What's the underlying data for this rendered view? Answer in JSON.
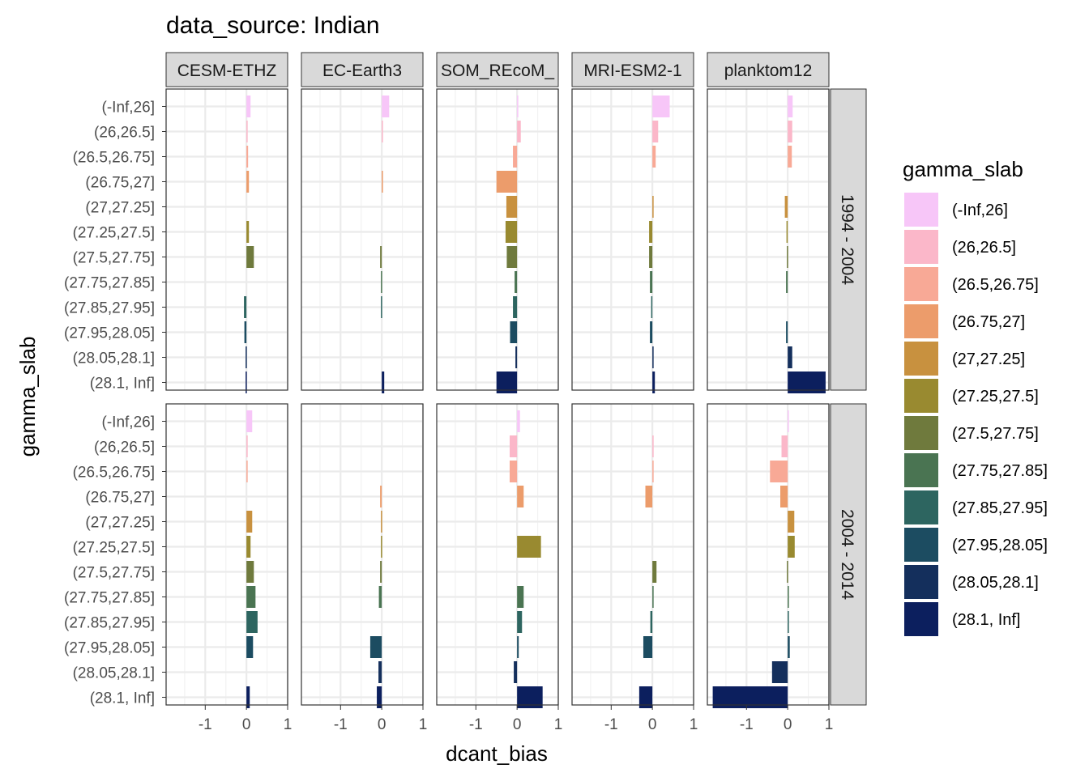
{
  "chart_data": {
    "type": "bar",
    "orientation": "horizontal",
    "facet_layout": "grid",
    "title": "data_source: Indian",
    "xlabel": "dcant_bias",
    "ylabel": "gamma_slab",
    "xlim": [
      -1.95,
      1.0
    ],
    "x_ticks": [
      -1,
      0,
      1
    ],
    "x_tick_labels": [
      "-1",
      "0",
      "1"
    ],
    "grid": true,
    "facet_columns": [
      "CESM-ETHZ",
      "EC-Earth3",
      "FESOM_REcoM_",
      "MRI-ESM2-1",
      "planktom12"
    ],
    "facet_column_labels": [
      "CESM-ETHZ",
      "EC-Earth3",
      "SOM_REcoM_",
      "MRI-ESM2-1",
      "planktom12"
    ],
    "facet_rows": [
      "1994 - 2004",
      "2004 - 2014"
    ],
    "categories": [
      "(-Inf,26]",
      "(26,26.5]",
      "(26.5,26.75]",
      "(26.75,27]",
      "(27,27.25]",
      "(27.25,27.5]",
      "(27.5,27.75]",
      "(27.75,27.85]",
      "(27.85,27.95]",
      "(27.95,28.05]",
      "(28.05,28.1]",
      "(28.1, Inf]"
    ],
    "colors": [
      "#f7c6f8",
      "#fbb7c9",
      "#f8a996",
      "#ec9c6b",
      "#c8913f",
      "#998a30",
      "#6f7a3d",
      "#4a7452",
      "#2d6560",
      "#1c4c61",
      "#142f5c",
      "#0c1f5e"
    ],
    "legend": {
      "title": "gamma_slab",
      "position": "right",
      "labels": [
        "(-Inf,26]",
        "(26,26.5]",
        "(26.5,26.75]",
        "(26.75,27]",
        "(27,27.25]",
        "(27.25,27.5]",
        "(27.5,27.75]",
        "(27.75,27.85]",
        "(27.85,27.95]",
        "(27.95,28.05]",
        "(28.05,28.1]",
        "(28.1, Inf]"
      ]
    },
    "panels": [
      {
        "row": "1994 - 2004",
        "column": "CESM-ETHZ",
        "values": [
          0.1,
          0.02,
          0.04,
          0.06,
          0.0,
          0.06,
          0.18,
          0.0,
          -0.06,
          -0.05,
          -0.02,
          -0.02
        ]
      },
      {
        "row": "1994 - 2004",
        "column": "EC-Earth3",
        "values": [
          0.18,
          0.03,
          0.0,
          0.03,
          0.0,
          0.0,
          -0.04,
          -0.02,
          -0.02,
          0.0,
          0.0,
          0.06
        ]
      },
      {
        "row": "1994 - 2004",
        "column": "FESOM_REcoM_",
        "values": [
          0.01,
          0.09,
          -0.1,
          -0.5,
          -0.26,
          -0.28,
          -0.25,
          -0.06,
          -0.1,
          -0.17,
          -0.04,
          -0.5
        ]
      },
      {
        "row": "1994 - 2004",
        "column": "MRI-ESM2-1",
        "values": [
          0.42,
          0.14,
          0.08,
          0.0,
          0.02,
          -0.08,
          -0.08,
          -0.06,
          -0.03,
          -0.06,
          0.01,
          0.06
        ]
      },
      {
        "row": "1994 - 2004",
        "column": "planktom12",
        "values": [
          0.12,
          0.11,
          0.1,
          0.0,
          -0.07,
          -0.03,
          -0.02,
          -0.04,
          0.0,
          -0.04,
          0.11,
          0.92
        ]
      },
      {
        "row": "2004 - 2014",
        "column": "CESM-ETHZ",
        "values": [
          0.14,
          0.03,
          0.02,
          0.0,
          0.14,
          0.1,
          0.18,
          0.22,
          0.27,
          0.16,
          0.0,
          0.08
        ]
      },
      {
        "row": "2004 - 2014",
        "column": "EC-Earth3",
        "values": [
          0.0,
          0.0,
          0.0,
          -0.04,
          -0.02,
          -0.02,
          -0.04,
          -0.07,
          0.0,
          -0.28,
          -0.08,
          -0.12
        ]
      },
      {
        "row": "2004 - 2014",
        "column": "FESOM_REcoM_",
        "values": [
          0.07,
          -0.18,
          -0.18,
          0.16,
          0.0,
          0.58,
          0.0,
          0.16,
          0.12,
          0.04,
          -0.08,
          0.62
        ]
      },
      {
        "row": "2004 - 2014",
        "column": "MRI-ESM2-1",
        "values": [
          0.0,
          0.03,
          0.02,
          -0.17,
          0.0,
          0.0,
          0.1,
          0.02,
          -0.05,
          -0.22,
          0.0,
          -0.32
        ]
      },
      {
        "row": "2004 - 2014",
        "column": "planktom12",
        "values": [
          0.02,
          -0.15,
          -0.43,
          -0.18,
          0.16,
          0.17,
          -0.02,
          0.02,
          0.02,
          0.05,
          -0.38,
          -1.82
        ]
      }
    ]
  }
}
